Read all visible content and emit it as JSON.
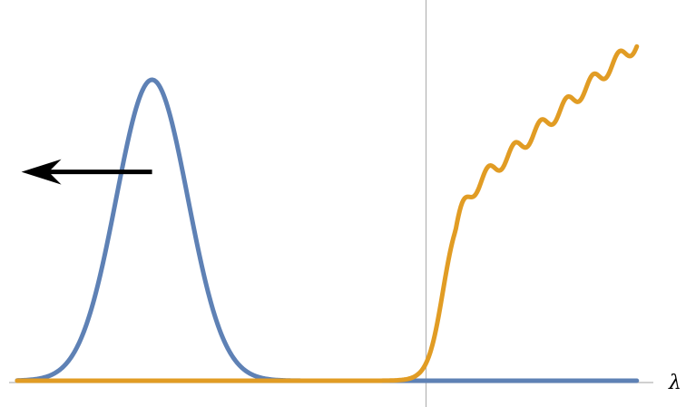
{
  "chart_data": {
    "type": "line",
    "title": "",
    "xlabel": "λ",
    "ylabel": "",
    "xlim": [
      -1.0,
      0.55
    ],
    "ylim": [
      0.0,
      1.0
    ],
    "x_axis_y": 0.0,
    "y_axis_x": 0.0,
    "grid": false,
    "legend": "none",
    "ticks": false,
    "series": [
      {
        "color": "#5e81b5",
        "shape": "gaussian",
        "peak_x": -0.65,
        "peak_y": 0.8,
        "width": 0.085,
        "x_range": [
          -0.97,
          0.5
        ]
      },
      {
        "color": "#e19c24",
        "shape": "logistic-staircase",
        "onset_x": 0.02,
        "rise_width": 0.018,
        "plateau_y": 0.475,
        "slope": 0.98,
        "step_period": 0.062,
        "step_amplitude": 0.02,
        "end_y": 0.965,
        "x_range": [
          -0.97,
          0.5
        ]
      }
    ],
    "annotations": [
      {
        "type": "arrow",
        "direction": "left",
        "color": "#000000",
        "from": [
          -0.65,
          0.555
        ],
        "to": [
          -0.96,
          0.555
        ]
      }
    ]
  }
}
